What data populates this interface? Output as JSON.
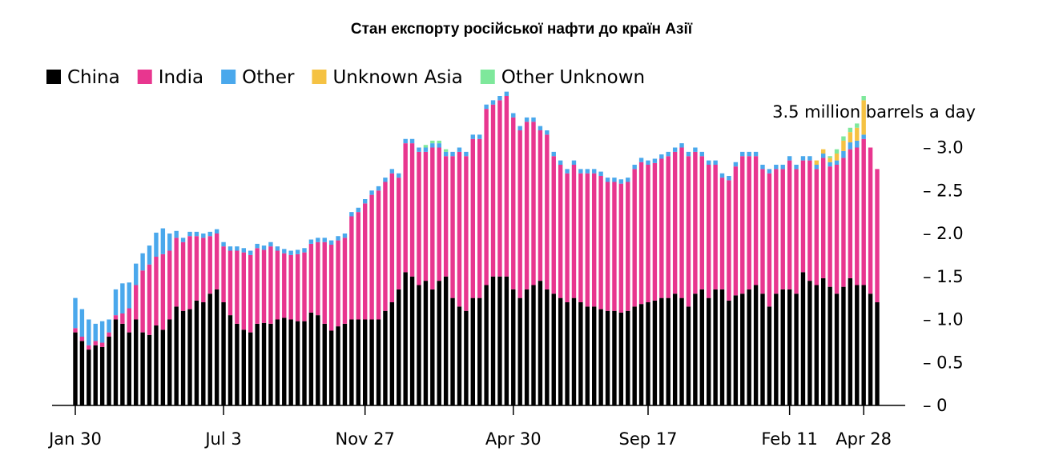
{
  "chart_data": {
    "type": "bar",
    "stacked": true,
    "title": "Стан експорту російської нафти до країн Азії",
    "unit_label": "3.5 million barrels a day",
    "y_ticks": [
      "0",
      "0.5",
      "1.0",
      "1.5",
      "2.0",
      "2.5",
      "3.0"
    ],
    "ylim": [
      0,
      3.5
    ],
    "x_ticks": [
      {
        "label": "Jan 30",
        "index": 0
      },
      {
        "label": "Jul 3",
        "index": 22
      },
      {
        "label": "Nov 27",
        "index": 43
      },
      {
        "label": "Apr 30",
        "index": 65
      },
      {
        "label": "Sep 17",
        "index": 85
      },
      {
        "label": "Feb 11",
        "index": 106
      },
      {
        "label": "Apr 28",
        "index": 117
      }
    ],
    "series": [
      {
        "name": "China",
        "color": "#000000",
        "values": [
          0.85,
          0.75,
          0.65,
          0.7,
          0.68,
          0.8,
          1.0,
          0.95,
          0.85,
          1.0,
          0.85,
          0.82,
          0.93,
          0.88,
          1.0,
          1.15,
          1.1,
          1.12,
          1.22,
          1.2,
          1.3,
          1.35,
          1.2,
          1.05,
          0.95,
          0.88,
          0.85,
          0.95,
          0.96,
          0.95,
          1.0,
          1.02,
          1.0,
          0.98,
          0.98,
          1.08,
          1.05,
          0.95,
          0.87,
          0.92,
          0.95,
          1.0,
          1.0,
          1.0,
          1.0,
          1.0,
          1.1,
          1.2,
          1.35,
          1.55,
          1.5,
          1.4,
          1.45,
          1.35,
          1.45,
          1.5,
          1.25,
          1.15,
          1.1,
          1.25,
          1.25,
          1.4,
          1.5,
          1.5,
          1.5,
          1.35,
          1.25,
          1.35,
          1.4,
          1.45,
          1.35,
          1.3,
          1.25,
          1.2,
          1.25,
          1.2,
          1.15,
          1.15,
          1.12,
          1.1,
          1.1,
          1.08,
          1.1,
          1.15,
          1.18,
          1.2,
          1.22,
          1.25,
          1.25,
          1.3,
          1.25,
          1.15,
          1.3,
          1.35,
          1.25,
          1.35,
          1.35,
          1.22,
          1.28,
          1.3,
          1.35,
          1.4,
          1.3,
          1.15,
          1.3,
          1.35,
          1.35,
          1.3,
          1.55,
          1.45,
          1.4,
          1.48,
          1.38,
          1.3,
          1.38,
          1.48,
          1.4,
          1.4,
          1.3,
          1.2
        ]
      },
      {
        "name": "India",
        "color": "#e8368f",
        "values": [
          0.05,
          0.05,
          0.05,
          0.05,
          0.05,
          0.05,
          0.05,
          0.12,
          0.28,
          0.4,
          0.72,
          0.82,
          0.8,
          0.88,
          0.8,
          0.8,
          0.8,
          0.85,
          0.75,
          0.75,
          0.67,
          0.65,
          0.65,
          0.75,
          0.85,
          0.9,
          0.9,
          0.88,
          0.85,
          0.9,
          0.8,
          0.75,
          0.75,
          0.78,
          0.8,
          0.8,
          0.85,
          0.95,
          1.0,
          1.0,
          1.0,
          1.2,
          1.25,
          1.35,
          1.45,
          1.5,
          1.5,
          1.5,
          1.3,
          1.5,
          1.55,
          1.55,
          1.5,
          1.65,
          1.55,
          1.4,
          1.65,
          1.8,
          1.8,
          1.85,
          1.85,
          2.05,
          2.0,
          2.05,
          2.1,
          2.0,
          1.95,
          1.95,
          1.9,
          1.75,
          1.8,
          1.6,
          1.55,
          1.5,
          1.55,
          1.5,
          1.55,
          1.55,
          1.55,
          1.5,
          1.5,
          1.5,
          1.5,
          1.6,
          1.65,
          1.6,
          1.6,
          1.62,
          1.65,
          1.65,
          1.75,
          1.75,
          1.65,
          1.55,
          1.55,
          1.45,
          1.3,
          1.4,
          1.5,
          1.6,
          1.55,
          1.5,
          1.45,
          1.55,
          1.45,
          1.4,
          1.5,
          1.45,
          1.3,
          1.4,
          1.35,
          1.4,
          1.4,
          1.5,
          1.5,
          1.5,
          1.6,
          1.7,
          1.7,
          1.55
        ]
      },
      {
        "name": "Other",
        "color": "#4aa8ec",
        "values": [
          0.35,
          0.32,
          0.3,
          0.2,
          0.25,
          0.15,
          0.3,
          0.35,
          0.3,
          0.25,
          0.2,
          0.22,
          0.28,
          0.3,
          0.2,
          0.08,
          0.05,
          0.05,
          0.05,
          0.05,
          0.05,
          0.05,
          0.05,
          0.05,
          0.05,
          0.05,
          0.05,
          0.05,
          0.05,
          0.05,
          0.05,
          0.05,
          0.05,
          0.05,
          0.05,
          0.05,
          0.05,
          0.05,
          0.05,
          0.05,
          0.05,
          0.05,
          0.05,
          0.05,
          0.05,
          0.05,
          0.05,
          0.05,
          0.05,
          0.05,
          0.05,
          0.05,
          0.05,
          0.05,
          0.05,
          0.05,
          0.05,
          0.05,
          0.05,
          0.05,
          0.05,
          0.05,
          0.05,
          0.05,
          0.05,
          0.05,
          0.05,
          0.05,
          0.05,
          0.05,
          0.05,
          0.05,
          0.05,
          0.05,
          0.05,
          0.05,
          0.05,
          0.05,
          0.05,
          0.05,
          0.05,
          0.05,
          0.05,
          0.05,
          0.05,
          0.05,
          0.05,
          0.05,
          0.05,
          0.05,
          0.05,
          0.05,
          0.05,
          0.05,
          0.05,
          0.05,
          0.05,
          0.05,
          0.05,
          0.05,
          0.05,
          0.05,
          0.05,
          0.05,
          0.05,
          0.05,
          0.05,
          0.05,
          0.05,
          0.05,
          0.05,
          0.05,
          0.05,
          0.05,
          0.08,
          0.08,
          0.08,
          0.05
        ]
      },
      {
        "name": "Unknown Asia",
        "color": "#f5c243",
        "values": [
          0,
          0,
          0,
          0,
          0,
          0,
          0,
          0,
          0,
          0,
          0,
          0,
          0,
          0,
          0,
          0,
          0,
          0,
          0,
          0,
          0,
          0,
          0,
          0,
          0,
          0,
          0,
          0,
          0,
          0,
          0,
          0,
          0,
          0,
          0,
          0,
          0,
          0,
          0,
          0,
          0,
          0,
          0,
          0,
          0,
          0,
          0,
          0,
          0,
          0,
          0,
          0,
          0,
          0,
          0,
          0,
          0,
          0,
          0,
          0,
          0,
          0,
          0,
          0,
          0,
          0,
          0,
          0,
          0,
          0,
          0,
          0,
          0,
          0,
          0,
          0,
          0,
          0,
          0,
          0,
          0,
          0,
          0,
          0,
          0,
          0,
          0,
          0,
          0,
          0,
          0,
          0,
          0,
          0,
          0,
          0,
          0,
          0,
          0,
          0,
          0,
          0,
          0,
          0,
          0,
          0,
          0,
          0,
          0,
          0,
          0.05,
          0.05,
          0.05,
          0.08,
          0.12,
          0.12,
          0.15,
          0.4
        ]
      },
      {
        "name": "Other Unknown",
        "color": "#7ee89b",
        "values": [
          0,
          0,
          0,
          0,
          0,
          0,
          0,
          0,
          0,
          0,
          0,
          0,
          0,
          0,
          0,
          0,
          0,
          0,
          0,
          0,
          0,
          0,
          0,
          0,
          0,
          0,
          0,
          0,
          0,
          0,
          0,
          0,
          0,
          0,
          0,
          0,
          0,
          0,
          0,
          0,
          0,
          0,
          0,
          0,
          0,
          0,
          0,
          0,
          0,
          0,
          0,
          0,
          0.03,
          0.03,
          0.03,
          0.03,
          0,
          0,
          0,
          0,
          0,
          0,
          0,
          0,
          0,
          0,
          0,
          0,
          0,
          0,
          0,
          0,
          0,
          0,
          0,
          0,
          0,
          0,
          0,
          0,
          0,
          0,
          0,
          0,
          0,
          0,
          0,
          0,
          0,
          0,
          0,
          0,
          0,
          0,
          0,
          0,
          0,
          0,
          0,
          0,
          0,
          0,
          0,
          0,
          0,
          0,
          0,
          0,
          0,
          0,
          0,
          0,
          0.02,
          0.05,
          0.05,
          0.05,
          0.05,
          0.05
        ]
      }
    ]
  }
}
